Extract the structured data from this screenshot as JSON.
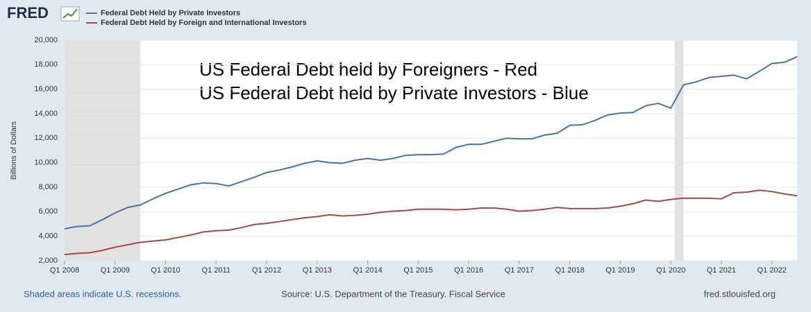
{
  "logo": "FRED",
  "footer": {
    "note": "Shaded areas indicate U.S. recessions.",
    "source": "Source: U.S. Department of the Treasury. Fiscal Service",
    "site": "fred.stlouisfed.org"
  },
  "chart_data": {
    "type": "line",
    "annotation": [
      "US Federal Debt held by Foreigners - Red",
      "US Federal Debt held by Private Investors - Blue"
    ],
    "y_label": "Billions of Dollars",
    "categories": [
      "Q1 2008",
      null,
      null,
      null,
      "Q1 2009",
      null,
      null,
      null,
      "Q1 2010",
      null,
      null,
      null,
      "Q1 2011",
      null,
      null,
      null,
      "Q1 2012",
      null,
      null,
      null,
      "Q1 2013",
      null,
      null,
      null,
      "Q1 2014",
      null,
      null,
      null,
      "Q1 2015",
      null,
      null,
      null,
      "Q1 2016",
      null,
      null,
      null,
      "Q1 2017",
      null,
      null,
      null,
      "Q1 2018",
      null,
      null,
      null,
      "Q1 2019",
      null,
      null,
      null,
      "Q1 2020",
      null,
      null,
      null,
      "Q1 2021",
      null,
      null,
      null,
      "Q1 2022",
      null,
      null
    ],
    "series": [
      {
        "name": "Federal Debt Held by Private Investors",
        "color": "#4572a7",
        "values": [
          4600,
          4800,
          4850,
          5350,
          5900,
          6350,
          6550,
          7050,
          7500,
          7850,
          8200,
          8350,
          8300,
          8100,
          8450,
          8800,
          9200,
          9400,
          9650,
          9950,
          10150,
          10000,
          9950,
          10200,
          10350,
          10200,
          10350,
          10600,
          10650,
          10650,
          10700,
          11250,
          11500,
          11500,
          11750,
          12000,
          11950,
          11950,
          12250,
          12400,
          13050,
          13100,
          13450,
          13900,
          14050,
          14100,
          14650,
          14850,
          14450,
          16350,
          16600,
          16950,
          17050,
          17150,
          16850,
          17450,
          18100,
          18200,
          18650
        ]
      },
      {
        "name": "Federal Debt Held by Foreign and International Investors",
        "color": "#aa4643",
        "values": [
          2500,
          2600,
          2650,
          2850,
          3100,
          3300,
          3500,
          3600,
          3700,
          3900,
          4100,
          4350,
          4450,
          4500,
          4700,
          4950,
          5050,
          5200,
          5350,
          5500,
          5600,
          5750,
          5650,
          5700,
          5800,
          5950,
          6050,
          6100,
          6200,
          6200,
          6200,
          6150,
          6200,
          6300,
          6300,
          6200,
          6050,
          6100,
          6200,
          6350,
          6250,
          6250,
          6250,
          6300,
          6450,
          6650,
          6950,
          6850,
          7000,
          7100,
          7100,
          7100,
          7050,
          7550,
          7600,
          7750,
          7650,
          7450,
          7300
        ]
      }
    ],
    "recessions": [
      [
        0,
        6
      ],
      [
        48.3,
        49
      ]
    ],
    "ylim": [
      2000,
      20000
    ],
    "yticks": [
      {
        "value": 2000,
        "label": "2,000"
      },
      {
        "value": 4000,
        "label": "4,000"
      },
      {
        "value": 6000,
        "label": "6,000"
      },
      {
        "value": 8000,
        "label": "8,000"
      },
      {
        "value": 10000,
        "label": "10,000"
      },
      {
        "value": 12000,
        "label": "12,000"
      },
      {
        "value": 14000,
        "label": "14,000"
      },
      {
        "value": 16000,
        "label": "16,000"
      },
      {
        "value": 18000,
        "label": "18,000"
      },
      {
        "value": 20000,
        "label": "20,000"
      }
    ],
    "grid": true
  }
}
